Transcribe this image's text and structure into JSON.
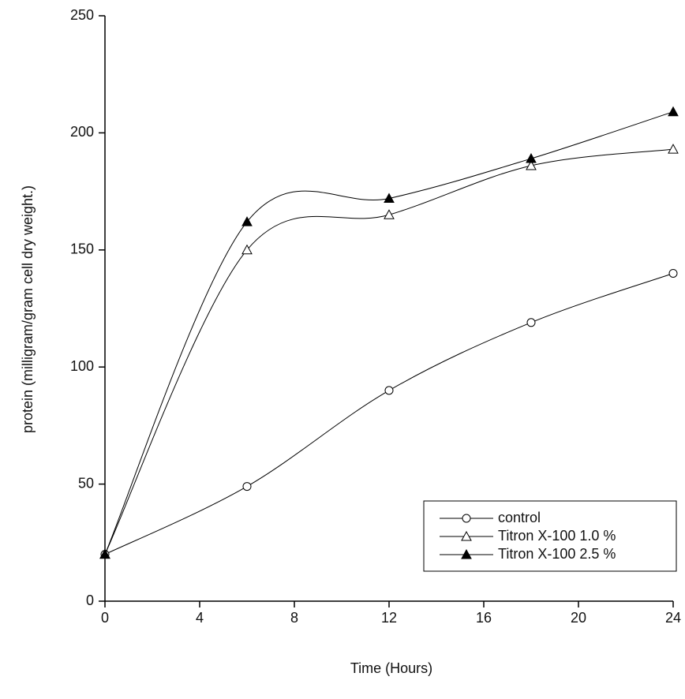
{
  "chart_data": {
    "type": "line",
    "x_label": "Time (Hours)",
    "y_label": "protein (milligram/gram cell dry weight.)",
    "x": [
      0,
      6,
      12,
      18,
      24
    ],
    "series": [
      {
        "name": "control",
        "color": "#000000",
        "marker": "open-circle",
        "values": [
          20,
          49,
          90,
          119,
          140
        ]
      },
      {
        "name": "Titron X-100 1.0 %",
        "color": "#000000",
        "marker": "open-triangle",
        "values": [
          20,
          150,
          165,
          186,
          193
        ]
      },
      {
        "name": "Titron X-100 2.5 %",
        "color": "#000000",
        "marker": "filled-triangle",
        "values": [
          20,
          162,
          172,
          189,
          209
        ]
      }
    ],
    "xlim": [
      0,
      24
    ],
    "xticks": [
      0,
      4,
      8,
      12,
      16,
      20,
      24
    ],
    "ylim": [
      0,
      250
    ],
    "yticks": [
      0,
      50,
      100,
      150,
      200,
      250
    ],
    "legend": "lower right",
    "grid": false
  }
}
